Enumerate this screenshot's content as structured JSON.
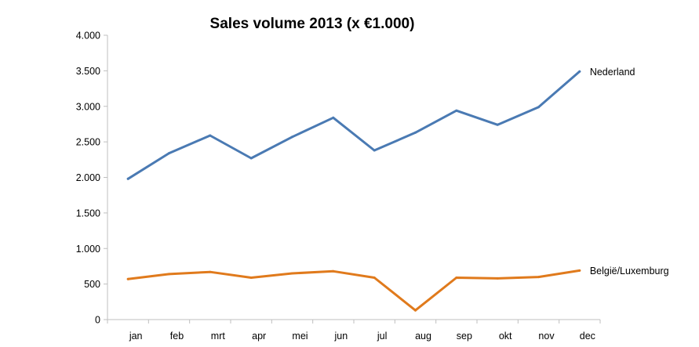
{
  "chart_data": {
    "type": "line",
    "title": "Sales volume 2013 (x €1.000)",
    "xlabel": "",
    "ylabel": "",
    "categories": [
      "jan",
      "feb",
      "mrt",
      "apr",
      "mei",
      "jun",
      "jul",
      "aug",
      "sep",
      "okt",
      "nov",
      "dec"
    ],
    "ylim": [
      0,
      4000
    ],
    "yticks": [
      0,
      500,
      1000,
      1500,
      2000,
      2500,
      3000,
      3500,
      4000
    ],
    "ytick_labels": [
      "0",
      "500",
      "1.000",
      "1.500",
      "2.000",
      "2.500",
      "3.000",
      "3.500",
      "4.000"
    ],
    "grid": false,
    "legend": "end-of-line labels",
    "series": [
      {
        "name": "Nederland",
        "color": "#4a7ab3",
        "values": [
          1980,
          2340,
          2590,
          2270,
          2570,
          2840,
          2380,
          2630,
          2940,
          2740,
          2990,
          3490
        ]
      },
      {
        "name": "België/Luxemburg",
        "color": "#e07a1c",
        "values": [
          570,
          640,
          670,
          590,
          650,
          680,
          590,
          130,
          590,
          580,
          600,
          690
        ]
      }
    ]
  }
}
